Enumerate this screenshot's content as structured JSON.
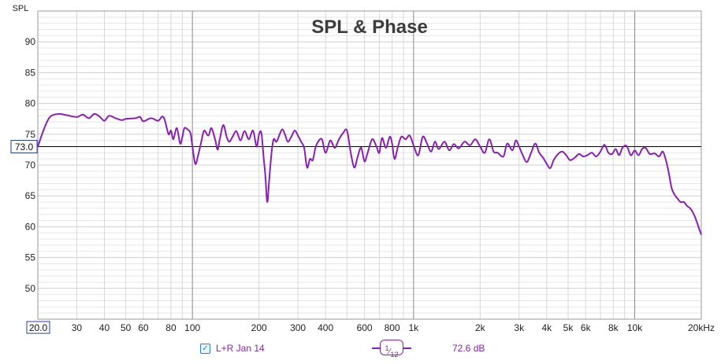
{
  "title": "SPL & Phase",
  "y_axis_name": "SPL",
  "y_tick_labels": [
    "90",
    "85",
    "80",
    "75",
    "70",
    "65",
    "60",
    "55",
    "50"
  ],
  "x_tick_labels": [
    {
      "f": 30,
      "t": "30"
    },
    {
      "f": 40,
      "t": "40"
    },
    {
      "f": 50,
      "t": "50"
    },
    {
      "f": 60,
      "t": "60"
    },
    {
      "f": 80,
      "t": "80"
    },
    {
      "f": 100,
      "t": "100"
    },
    {
      "f": 200,
      "t": "200"
    },
    {
      "f": 300,
      "t": "300"
    },
    {
      "f": 400,
      "t": "400"
    },
    {
      "f": 600,
      "t": "600"
    },
    {
      "f": 800,
      "t": "800"
    },
    {
      "f": 1000,
      "t": "1k"
    },
    {
      "f": 2000,
      "t": "2k"
    },
    {
      "f": 3000,
      "t": "3k"
    },
    {
      "f": 4000,
      "t": "4k"
    },
    {
      "f": 5000,
      "t": "5k"
    },
    {
      "f": 6000,
      "t": "6k"
    },
    {
      "f": 8000,
      "t": "8k"
    },
    {
      "f": 10000,
      "t": "10k"
    },
    {
      "f": 20000,
      "t": "20kHz"
    }
  ],
  "x_start_label": "20.0",
  "cursor_label": "73.0",
  "legend": {
    "checkbox_mark": "✓",
    "series_name": "L+R Jan 14",
    "smoothing_numerator": "1",
    "smoothing_denominator": "12",
    "level_value": "72.6 dB"
  },
  "colors": {
    "series": "#8b1fb4",
    "grid": "#d8d8d8",
    "decade": "#8a8a8a",
    "cursor": "#000000",
    "label_box": "#1f3fa8"
  },
  "chart_data": {
    "type": "line",
    "title": "SPL & Phase",
    "ylabel": "SPL",
    "xlabel": "",
    "x_scale": "log",
    "xlim": [
      20,
      20000
    ],
    "ylim": [
      45,
      95
    ],
    "grid": true,
    "cursor_level": 73.0,
    "series": [
      {
        "name": "L+R Jan 14",
        "color": "#8b1fb4",
        "points": [
          [
            20,
            73.0
          ],
          [
            21,
            75.2
          ],
          [
            22,
            77.0
          ],
          [
            23,
            78.0
          ],
          [
            25,
            78.3
          ],
          [
            27,
            78.1
          ],
          [
            30,
            77.8
          ],
          [
            32,
            78.2
          ],
          [
            34,
            77.6
          ],
          [
            36,
            78.3
          ],
          [
            38,
            77.9
          ],
          [
            40,
            77.2
          ],
          [
            42,
            78.0
          ],
          [
            45,
            77.6
          ],
          [
            48,
            77.3
          ],
          [
            50,
            77.5
          ],
          [
            55,
            77.6
          ],
          [
            58,
            77.8
          ],
          [
            60,
            77.1
          ],
          [
            65,
            77.6
          ],
          [
            70,
            77.2
          ],
          [
            73,
            77.9
          ],
          [
            75,
            77.3
          ],
          [
            78,
            75.0
          ],
          [
            80,
            75.6
          ],
          [
            82,
            74.2
          ],
          [
            85,
            76.0
          ],
          [
            88,
            73.5
          ],
          [
            90,
            74.5
          ],
          [
            92,
            76.0
          ],
          [
            95,
            75.8
          ],
          [
            98,
            75.2
          ],
          [
            100,
            73.0
          ],
          [
            103,
            70.2
          ],
          [
            106,
            71.5
          ],
          [
            110,
            74.0
          ],
          [
            113,
            75.6
          ],
          [
            118,
            74.8
          ],
          [
            122,
            76.0
          ],
          [
            127,
            74.0
          ],
          [
            130,
            72.5
          ],
          [
            133,
            74.2
          ],
          [
            138,
            76.5
          ],
          [
            143,
            74.5
          ],
          [
            147,
            73.8
          ],
          [
            152,
            74.6
          ],
          [
            158,
            75.5
          ],
          [
            165,
            74.0
          ],
          [
            172,
            75.5
          ],
          [
            180,
            74.2
          ],
          [
            188,
            75.6
          ],
          [
            195,
            73.0
          ],
          [
            200,
            75.0
          ],
          [
            205,
            75.2
          ],
          [
            210,
            71.2
          ],
          [
            214,
            68.0
          ],
          [
            218,
            64.0
          ],
          [
            223,
            68.0
          ],
          [
            228,
            72.0
          ],
          [
            233,
            74.2
          ],
          [
            240,
            73.8
          ],
          [
            248,
            75.0
          ],
          [
            255,
            75.8
          ],
          [
            262,
            75.0
          ],
          [
            270,
            73.8
          ],
          [
            280,
            74.6
          ],
          [
            290,
            75.6
          ],
          [
            300,
            74.8
          ],
          [
            310,
            73.8
          ],
          [
            320,
            72.8
          ],
          [
            330,
            69.6
          ],
          [
            340,
            71.0
          ],
          [
            350,
            70.8
          ],
          [
            360,
            72.8
          ],
          [
            370,
            73.8
          ],
          [
            385,
            74.2
          ],
          [
            400,
            72.0
          ],
          [
            420,
            74.0
          ],
          [
            440,
            72.8
          ],
          [
            460,
            74.2
          ],
          [
            480,
            75.2
          ],
          [
            500,
            75.6
          ],
          [
            520,
            72.0
          ],
          [
            540,
            69.6
          ],
          [
            560,
            71.5
          ],
          [
            580,
            72.8
          ],
          [
            600,
            70.6
          ],
          [
            620,
            72.0
          ],
          [
            650,
            74.2
          ],
          [
            680,
            73.0
          ],
          [
            700,
            72.0
          ],
          [
            720,
            74.4
          ],
          [
            750,
            72.8
          ],
          [
            780,
            74.6
          ],
          [
            800,
            73.5
          ],
          [
            820,
            71.0
          ],
          [
            850,
            73.0
          ],
          [
            880,
            74.6
          ],
          [
            920,
            74.2
          ],
          [
            960,
            74.8
          ],
          [
            1000,
            73.2
          ],
          [
            1050,
            71.6
          ],
          [
            1100,
            74.6
          ],
          [
            1150,
            73.5
          ],
          [
            1200,
            72.2
          ],
          [
            1250,
            73.8
          ],
          [
            1300,
            72.6
          ],
          [
            1380,
            73.8
          ],
          [
            1450,
            72.4
          ],
          [
            1520,
            73.4
          ],
          [
            1600,
            72.7
          ],
          [
            1700,
            73.8
          ],
          [
            1800,
            73.2
          ],
          [
            1900,
            74.2
          ],
          [
            2000,
            73.0
          ],
          [
            2100,
            72.0
          ],
          [
            2200,
            74.2
          ],
          [
            2300,
            72.2
          ],
          [
            2400,
            72.0
          ],
          [
            2550,
            71.4
          ],
          [
            2650,
            73.5
          ],
          [
            2800,
            72.4
          ],
          [
            2900,
            74.0
          ],
          [
            3000,
            73.0
          ],
          [
            3100,
            71.8
          ],
          [
            3250,
            70.5
          ],
          [
            3400,
            72.0
          ],
          [
            3550,
            73.5
          ],
          [
            3700,
            72.0
          ],
          [
            3850,
            71.2
          ],
          [
            4000,
            70.2
          ],
          [
            4150,
            69.5
          ],
          [
            4300,
            70.8
          ],
          [
            4500,
            71.8
          ],
          [
            4700,
            72.2
          ],
          [
            4900,
            71.6
          ],
          [
            5100,
            70.8
          ],
          [
            5350,
            71.2
          ],
          [
            5600,
            71.8
          ],
          [
            5850,
            71.4
          ],
          [
            6100,
            71.6
          ],
          [
            6400,
            72.0
          ],
          [
            6700,
            71.4
          ],
          [
            7000,
            72.2
          ],
          [
            7300,
            73.3
          ],
          [
            7600,
            72.0
          ],
          [
            7900,
            71.8
          ],
          [
            8200,
            72.6
          ],
          [
            8500,
            71.6
          ],
          [
            8800,
            72.8
          ],
          [
            9200,
            73.1
          ],
          [
            9600,
            71.6
          ],
          [
            10000,
            72.4
          ],
          [
            10400,
            71.6
          ],
          [
            10800,
            72.6
          ],
          [
            11200,
            72.8
          ],
          [
            11700,
            71.8
          ],
          [
            12300,
            71.9
          ],
          [
            12900,
            71.4
          ],
          [
            13400,
            72.2
          ],
          [
            13900,
            70.5
          ],
          [
            14300,
            68.5
          ],
          [
            14700,
            66.2
          ],
          [
            15200,
            65.1
          ],
          [
            15600,
            64.6
          ],
          [
            16100,
            64.0
          ],
          [
            16700,
            64.0
          ],
          [
            17200,
            63.4
          ],
          [
            17800,
            63.0
          ],
          [
            18400,
            62.2
          ],
          [
            19000,
            61.0
          ],
          [
            19500,
            59.8
          ],
          [
            20000,
            58.7
          ]
        ]
      }
    ]
  }
}
